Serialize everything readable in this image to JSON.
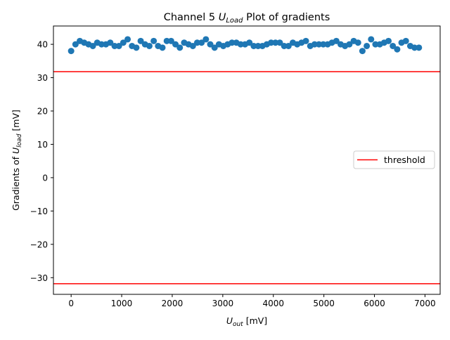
{
  "chart_data": {
    "type": "scatter",
    "title_prefix": "Channel 5 ",
    "title_var": "U",
    "title_sub": "Load",
    "title_suffix": " Plot of gradients",
    "xlabel_var": "U",
    "xlabel_sub": "out",
    "xlabel_unit": " [mV]",
    "ylabel_prefix": "Gradients of ",
    "ylabel_var": "U",
    "ylabel_sub": "load",
    "ylabel_unit": " [mV]",
    "xlim": [
      -350,
      7300
    ],
    "ylim": [
      -35,
      45.5
    ],
    "xticks": [
      0,
      1000,
      2000,
      3000,
      4000,
      5000,
      6000,
      7000
    ],
    "yticks": [
      -30,
      -20,
      -10,
      0,
      10,
      20,
      30,
      40
    ],
    "point_color": "#1f77b4",
    "threshold_color": "#ff0000",
    "thresholds": [
      31.8,
      -31.8
    ],
    "legend": {
      "label": "threshold",
      "position": "center-right"
    },
    "points": [
      [
        0,
        38.0
      ],
      [
        86,
        40.0
      ],
      [
        172,
        41.0
      ],
      [
        258,
        40.5
      ],
      [
        344,
        40.0
      ],
      [
        430,
        39.5
      ],
      [
        516,
        40.5
      ],
      [
        602,
        40.0
      ],
      [
        688,
        40.0
      ],
      [
        774,
        40.5
      ],
      [
        860,
        39.5
      ],
      [
        946,
        39.5
      ],
      [
        1032,
        40.5
      ],
      [
        1118,
        41.5
      ],
      [
        1204,
        39.5
      ],
      [
        1290,
        39.0
      ],
      [
        1376,
        41.0
      ],
      [
        1462,
        40.0
      ],
      [
        1548,
        39.5
      ],
      [
        1634,
        41.0
      ],
      [
        1720,
        39.5
      ],
      [
        1806,
        39.0
      ],
      [
        1892,
        41.0
      ],
      [
        1978,
        41.0
      ],
      [
        2064,
        40.0
      ],
      [
        2150,
        39.0
      ],
      [
        2236,
        40.5
      ],
      [
        2322,
        40.0
      ],
      [
        2408,
        39.5
      ],
      [
        2494,
        40.5
      ],
      [
        2580,
        40.5
      ],
      [
        2666,
        41.5
      ],
      [
        2752,
        40.0
      ],
      [
        2838,
        39.0
      ],
      [
        2924,
        40.0
      ],
      [
        3010,
        39.5
      ],
      [
        3096,
        40.0
      ],
      [
        3182,
        40.5
      ],
      [
        3268,
        40.5
      ],
      [
        3354,
        40.0
      ],
      [
        3440,
        40.0
      ],
      [
        3526,
        40.5
      ],
      [
        3612,
        39.5
      ],
      [
        3698,
        39.5
      ],
      [
        3784,
        39.5
      ],
      [
        3870,
        40.0
      ],
      [
        3956,
        40.5
      ],
      [
        4042,
        40.5
      ],
      [
        4128,
        40.5
      ],
      [
        4214,
        39.5
      ],
      [
        4300,
        39.5
      ],
      [
        4386,
        40.5
      ],
      [
        4472,
        40.0
      ],
      [
        4558,
        40.5
      ],
      [
        4644,
        41.0
      ],
      [
        4730,
        39.5
      ],
      [
        4816,
        40.0
      ],
      [
        4902,
        40.0
      ],
      [
        4988,
        40.0
      ],
      [
        5074,
        40.0
      ],
      [
        5160,
        40.5
      ],
      [
        5246,
        41.0
      ],
      [
        5332,
        40.0
      ],
      [
        5418,
        39.5
      ],
      [
        5504,
        40.0
      ],
      [
        5590,
        41.0
      ],
      [
        5676,
        40.5
      ],
      [
        5762,
        38.0
      ],
      [
        5848,
        39.5
      ],
      [
        5934,
        41.5
      ],
      [
        6020,
        40.0
      ],
      [
        6106,
        40.0
      ],
      [
        6192,
        40.5
      ],
      [
        6278,
        41.0
      ],
      [
        6364,
        39.5
      ],
      [
        6450,
        38.5
      ],
      [
        6536,
        40.5
      ],
      [
        6622,
        41.0
      ],
      [
        6708,
        39.5
      ],
      [
        6794,
        39.0
      ],
      [
        6880,
        39.0
      ]
    ]
  }
}
